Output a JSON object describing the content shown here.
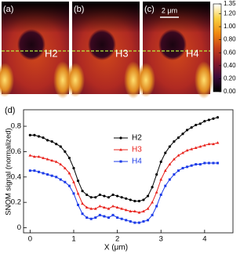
{
  "panels": [
    {
      "label": "(a)",
      "name": "H2"
    },
    {
      "label": "(b)",
      "name": "H3"
    },
    {
      "label": "(c)",
      "name": "H4"
    }
  ],
  "scale_bar": "2 μm",
  "chart_data": [
    {
      "type": "colorbar",
      "colormap": [
        "#000000",
        "#3a0a3a",
        "#8a1a2a",
        "#c8401a",
        "#f08a10",
        "#f8d040",
        "#ffffff"
      ],
      "ylim": [
        0,
        1.35
      ],
      "yticks": [
        {
          "value": 0,
          "label": "0.00"
        },
        {
          "value": 0.2,
          "label": "0.20"
        },
        {
          "value": 0.4,
          "label": "0.40"
        },
        {
          "value": 0.6,
          "label": "0.60"
        },
        {
          "value": 0.8,
          "label": "0.80"
        },
        {
          "value": 1,
          "label": "1.00"
        },
        {
          "value": 1.2,
          "label": "1.20"
        },
        {
          "value": 1.35,
          "label": "1.35"
        }
      ]
    },
    {
      "type": "line",
      "label": "(d)",
      "xlabel": "X (μm)",
      "ylabel": "SNOM signal (normalized)",
      "x": [
        0,
        0.1,
        0.2,
        0.3,
        0.4,
        0.5,
        0.6,
        0.7,
        0.8,
        0.9,
        1.0,
        1.1,
        1.2,
        1.3,
        1.4,
        1.5,
        1.6,
        1.7,
        1.8,
        1.9,
        2.0,
        2.1,
        2.2,
        2.3,
        2.4,
        2.5,
        2.6,
        2.7,
        2.8,
        2.9,
        3.0,
        3.1,
        3.2,
        3.3,
        3.4,
        3.5,
        3.6,
        3.7,
        3.8,
        3.9,
        4.0,
        4.1,
        4.2,
        4.3
      ],
      "series": [
        {
          "name": "H2",
          "color": "#000000",
          "marker": "circle",
          "values": [
            0.73,
            0.73,
            0.72,
            0.71,
            0.69,
            0.68,
            0.66,
            0.64,
            0.6,
            0.55,
            0.47,
            0.37,
            0.29,
            0.26,
            0.24,
            0.24,
            0.26,
            0.25,
            0.24,
            0.26,
            0.25,
            0.24,
            0.23,
            0.22,
            0.21,
            0.21,
            0.22,
            0.25,
            0.32,
            0.42,
            0.52,
            0.59,
            0.64,
            0.68,
            0.71,
            0.74,
            0.77,
            0.79,
            0.81,
            0.82,
            0.84,
            0.85,
            0.86,
            0.87
          ]
        },
        {
          "name": "H3",
          "color": "#e8201a",
          "marker": "triangle",
          "values": [
            0.57,
            0.56,
            0.56,
            0.55,
            0.54,
            0.53,
            0.52,
            0.5,
            0.47,
            0.43,
            0.36,
            0.27,
            0.19,
            0.16,
            0.15,
            0.15,
            0.17,
            0.16,
            0.15,
            0.17,
            0.16,
            0.15,
            0.14,
            0.13,
            0.13,
            0.12,
            0.13,
            0.15,
            0.2,
            0.28,
            0.38,
            0.45,
            0.5,
            0.54,
            0.57,
            0.59,
            0.61,
            0.62,
            0.63,
            0.64,
            0.65,
            0.66,
            0.66,
            0.67
          ]
        },
        {
          "name": "H4",
          "color": "#1a3ae8",
          "marker": "square",
          "values": [
            0.45,
            0.45,
            0.44,
            0.43,
            0.42,
            0.41,
            0.4,
            0.38,
            0.36,
            0.33,
            0.27,
            0.18,
            0.11,
            0.08,
            0.07,
            0.08,
            0.1,
            0.09,
            0.08,
            0.1,
            0.08,
            0.07,
            0.06,
            0.05,
            0.04,
            0.04,
            0.05,
            0.06,
            0.1,
            0.17,
            0.26,
            0.33,
            0.38,
            0.42,
            0.45,
            0.47,
            0.48,
            0.49,
            0.5,
            0.5,
            0.51,
            0.51,
            0.51,
            0.51
          ]
        }
      ],
      "xlim": [
        -0.15,
        4.65
      ],
      "ylim": [
        -0.04,
        0.93
      ],
      "xticks": [
        0,
        1,
        2,
        3,
        4
      ],
      "yticks": [
        0,
        0.2,
        0.4,
        0.6,
        0.8
      ]
    }
  ]
}
